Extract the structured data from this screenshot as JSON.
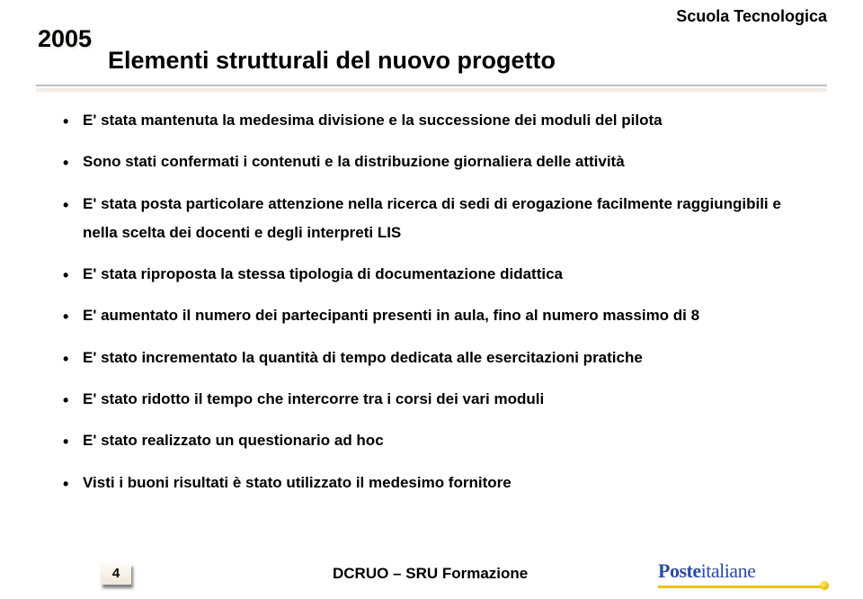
{
  "year": "2005",
  "header_right": "Scuola Tecnologica",
  "title": "Elementi strutturali del nuovo progetto",
  "bullets": [
    "E' stata mantenuta la medesima divisione e la successione dei moduli del pilota",
    "Sono stati confermati i contenuti e la distribuzione giornaliera delle attività",
    "E' stata posta particolare attenzione nella ricerca di sedi di erogazione facilmente raggiungibili e nella scelta dei docenti e degli interpreti LIS",
    "E' stata riproposta la stessa tipologia di documentazione didattica",
    "E' aumentato il numero dei partecipanti presenti in aula, fino al numero massimo di 8",
    "E' stato incrementato la quantità di tempo dedicata alle esercitazioni pratiche",
    "E' stato ridotto il tempo che intercorre tra i corsi dei vari moduli",
    "E' stato realizzato un questionario ad hoc",
    "Visti i buoni risultati è stato utilizzato il medesimo fornitore"
  ],
  "footer": {
    "page_number": "4",
    "text": "DCRUO – SRU Formazione",
    "logo_part1": "Poste",
    "logo_part2": "italiane"
  },
  "colors": {
    "text": "#000000",
    "rule": "#c0c0c0",
    "rule_shadow": "#f3ede7",
    "logo_blue": "#2c4da0",
    "logo_yellow": "#f2c100",
    "background": "#ffffff"
  },
  "typography": {
    "body_fontsize_pt": 13,
    "title_fontsize_pt": 20,
    "year_fontsize_pt": 20,
    "header_fontsize_pt": 14,
    "footer_fontsize_pt": 13,
    "font_family": "Arial"
  }
}
